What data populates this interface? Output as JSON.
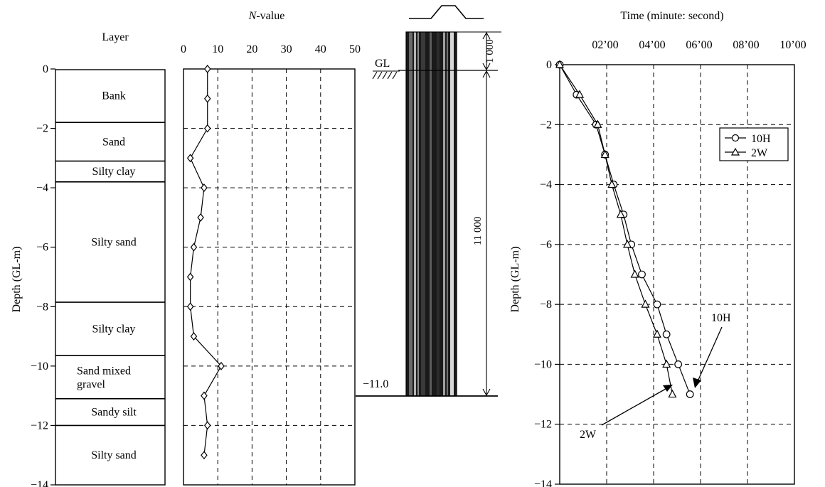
{
  "chart_data": [
    {
      "id": "soil_layers",
      "type": "table",
      "title": "Layer",
      "ylabel": "Depth (GL-m)",
      "ylim": [
        0,
        -14
      ],
      "yticks": [
        "0",
        "−2",
        "−4",
        "−6",
        "−8",
        "−10",
        "−12",
        "−14"
      ],
      "layers": [
        {
          "name": "Bank",
          "top": 0,
          "bottom": -1.8
        },
        {
          "name": "Sand",
          "top": -1.8,
          "bottom": -3.1
        },
        {
          "name": "Silty clay",
          "top": -3.1,
          "bottom": -3.8
        },
        {
          "name": "Silty sand",
          "top": -3.8,
          "bottom": -7.85
        },
        {
          "name": "Silty clay",
          "top": -7.85,
          "bottom": -9.65
        },
        {
          "name": "Sand mixed gravel",
          "label_lines": [
            "Sand mixed",
            "gravel"
          ],
          "top": -9.65,
          "bottom": -11.1
        },
        {
          "name": "Sandy silt",
          "top": -11.1,
          "bottom": -12.0
        },
        {
          "name": "Silty sand",
          "top": -12.0,
          "bottom": -14.0
        }
      ]
    },
    {
      "id": "n_value",
      "type": "line",
      "title_italic": "N",
      "title_rest": "-value",
      "xlim": [
        0,
        50
      ],
      "xticks": [
        0,
        10,
        20,
        30,
        40,
        50
      ],
      "ylim": [
        0,
        -14
      ],
      "grid": true,
      "marker": "diamond",
      "points": [
        {
          "x": 7,
          "y": 0
        },
        {
          "x": 7,
          "y": -1
        },
        {
          "x": 7,
          "y": -2
        },
        {
          "x": 2,
          "y": -3
        },
        {
          "x": 6,
          "y": -4
        },
        {
          "x": 5,
          "y": -5
        },
        {
          "x": 3,
          "y": -6
        },
        {
          "x": 2,
          "y": -7
        },
        {
          "x": 2,
          "y": -8
        },
        {
          "x": 3,
          "y": -9
        },
        {
          "x": 11,
          "y": -10
        },
        {
          "x": 6,
          "y": -11
        },
        {
          "x": 7,
          "y": -12
        },
        {
          "x": 6,
          "y": -13
        }
      ]
    },
    {
      "id": "pile",
      "type": "diagram",
      "gl_label": "GL",
      "tip_label": "−11.0",
      "dim_top": "1 000",
      "dim_main": "11 000"
    },
    {
      "id": "installation_time",
      "type": "line",
      "title": "Time (minute: second)",
      "ylabel": "Depth (GL-m)",
      "xticks": [
        "02’00",
        "04’00",
        "06’00",
        "08’00",
        "10’00"
      ],
      "xlim_minutes": [
        0,
        10
      ],
      "ylim": [
        0,
        -14
      ],
      "yticks": [
        "0",
        "−2",
        "−4",
        "−6",
        "−8",
        "−10",
        "−12",
        "−14"
      ],
      "grid": true,
      "legend": "top-right",
      "series": [
        {
          "name": "10H",
          "marker": "circle",
          "depth": [
            0,
            -1,
            -2,
            -3,
            -4,
            -5,
            -6,
            -7,
            -8,
            -9,
            -10,
            -11
          ],
          "time_minutes": [
            0,
            0.72,
            1.55,
            1.93,
            2.3,
            2.72,
            3.05,
            3.5,
            4.15,
            4.55,
            5.05,
            5.55
          ]
        },
        {
          "name": "2W",
          "marker": "triangle",
          "depth": [
            0,
            -1,
            -2,
            -3,
            -4,
            -5,
            -6,
            -7,
            -8,
            -9,
            -10,
            -11
          ],
          "time_minutes": [
            0,
            0.85,
            1.62,
            1.93,
            2.22,
            2.6,
            2.88,
            3.2,
            3.65,
            4.15,
            4.55,
            4.8
          ]
        }
      ],
      "annotations": [
        "10H",
        "2W"
      ]
    }
  ]
}
